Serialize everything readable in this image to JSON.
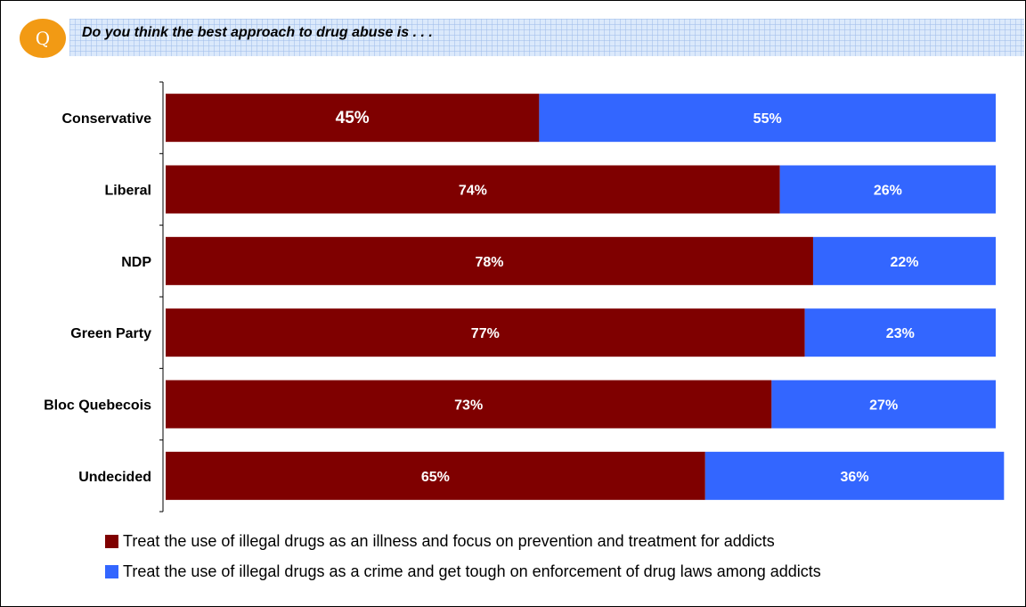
{
  "question": {
    "badge": "Q",
    "text": "Do you think the best approach to drug abuse is . . ."
  },
  "colors": {
    "illness": "#7f0000",
    "crime": "#3366ff",
    "badge": "#f29a14"
  },
  "chart_data": {
    "type": "bar",
    "orientation": "horizontal",
    "stacked": true,
    "categories": [
      "Conservative",
      "Liberal ",
      "NDP",
      "Green Party",
      "Bloc Quebecois ",
      "Undecided"
    ],
    "series": [
      {
        "name": "Treat the use of illegal drugs as an illness and focus on prevention and treatment for addicts",
        "values": [
          45,
          74,
          78,
          77,
          73,
          65
        ],
        "labels": [
          "45%",
          "74%",
          "78%",
          "77%",
          "73%",
          "65%"
        ]
      },
      {
        "name": "Treat the use of illegal drugs as a crime and get tough on enforcement of drug laws among addicts",
        "values": [
          55,
          26,
          22,
          23,
          27,
          36
        ],
        "labels": [
          "55%",
          "26%",
          "22%",
          "23%",
          "27%",
          "36%"
        ]
      }
    ],
    "xlim": [
      0,
      100
    ],
    "grid": false,
    "legend_position": "bottom"
  }
}
